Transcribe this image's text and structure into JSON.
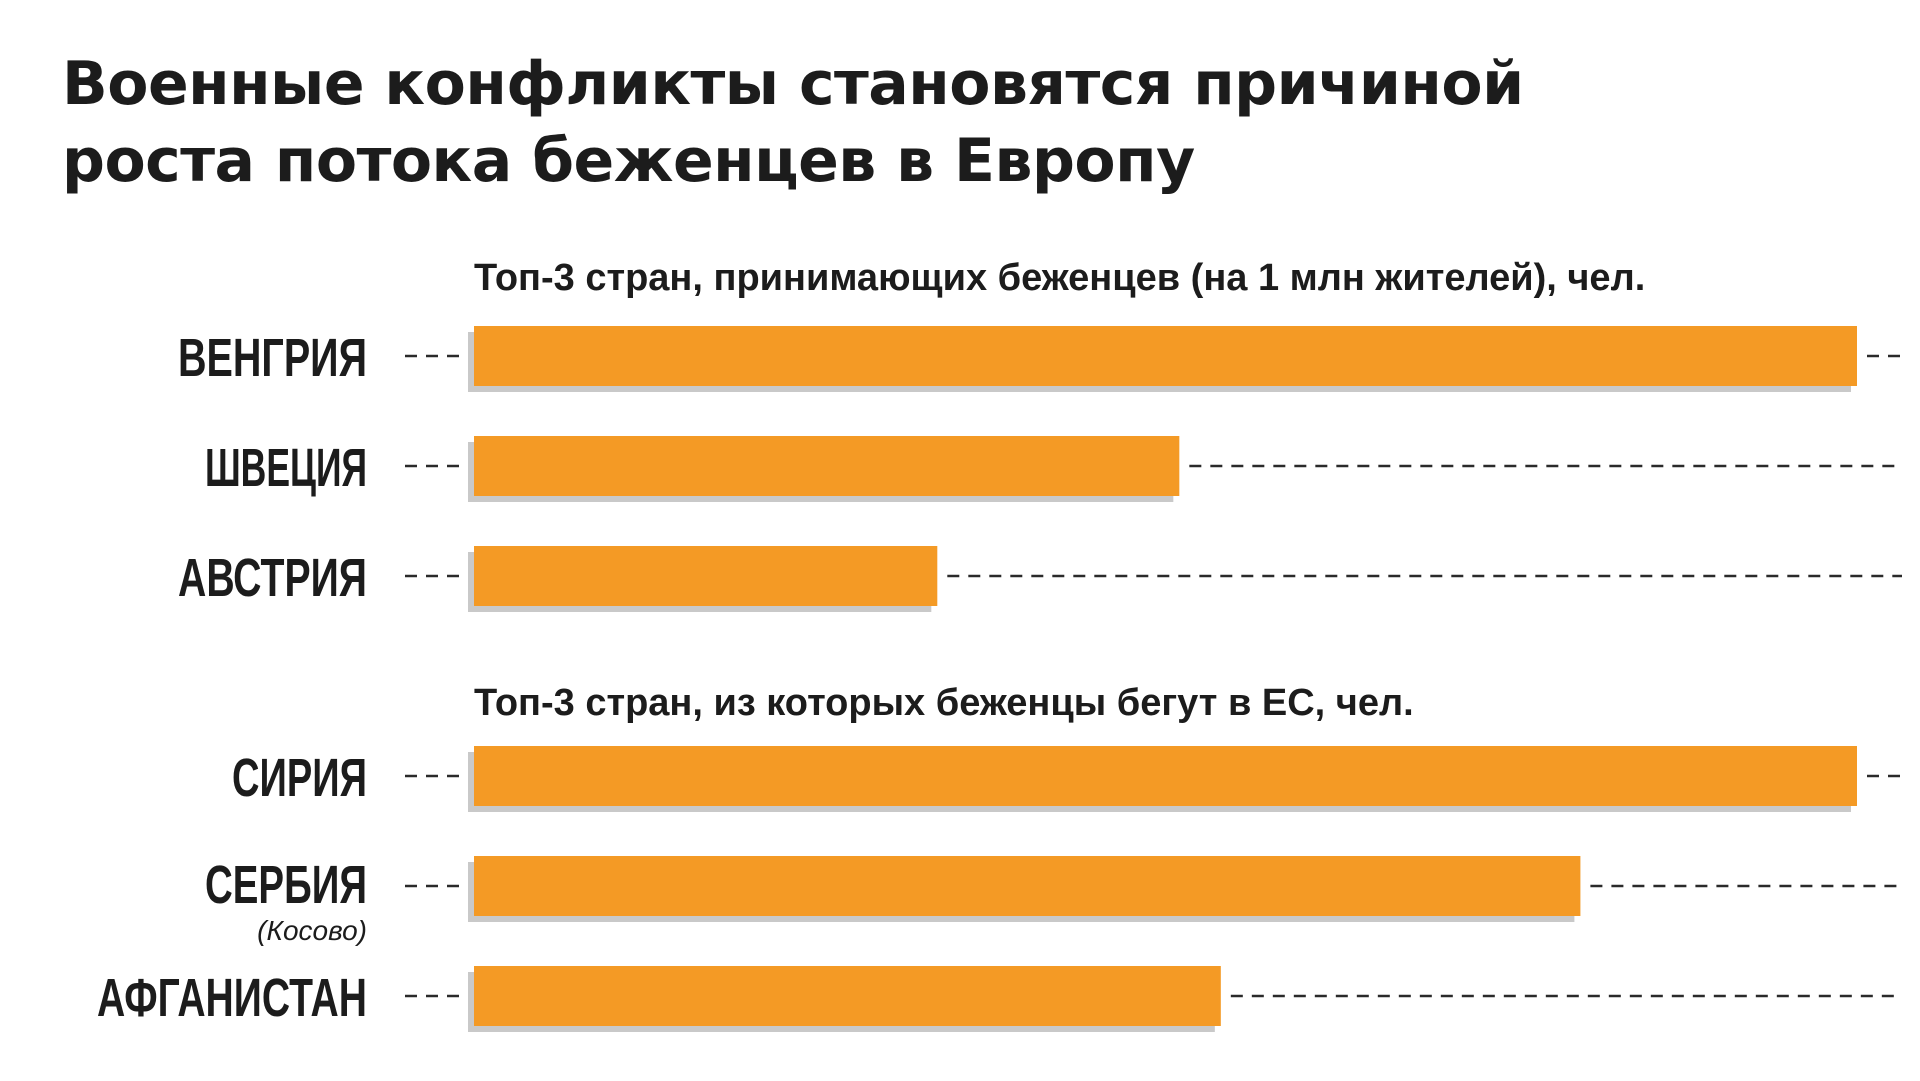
{
  "title": {
    "line1": "Военные конфликты становятся причиной",
    "line2": "роста потока беженцев в Европу"
  },
  "colors": {
    "bar": "#f49a25",
    "bar_shadow": "#c9c9c9",
    "text": "#1c1c1c"
  },
  "chart_data": [
    {
      "type": "bar",
      "orientation": "horizontal",
      "title": "Топ-3 стран, принимающих беженцев (на 1 млн жителей), чел.",
      "categories": [
        "ВЕНГРИЯ",
        "ШВЕЦИЯ",
        "АВСТРИЯ"
      ],
      "category_notes": [
        "",
        "",
        ""
      ],
      "values": [
        100,
        51,
        33.5
      ],
      "xlim": [
        0,
        100
      ]
    },
    {
      "type": "bar",
      "orientation": "horizontal",
      "title": "Топ-3 стран, из которых беженцы бегут в ЕС, чел.",
      "categories": [
        "СИРИЯ",
        "СЕРБИЯ",
        "АФГАНИСТАН"
      ],
      "category_notes": [
        "",
        "(Косово)",
        ""
      ],
      "values": [
        100,
        80,
        54
      ],
      "xlim": [
        0,
        100
      ]
    }
  ]
}
